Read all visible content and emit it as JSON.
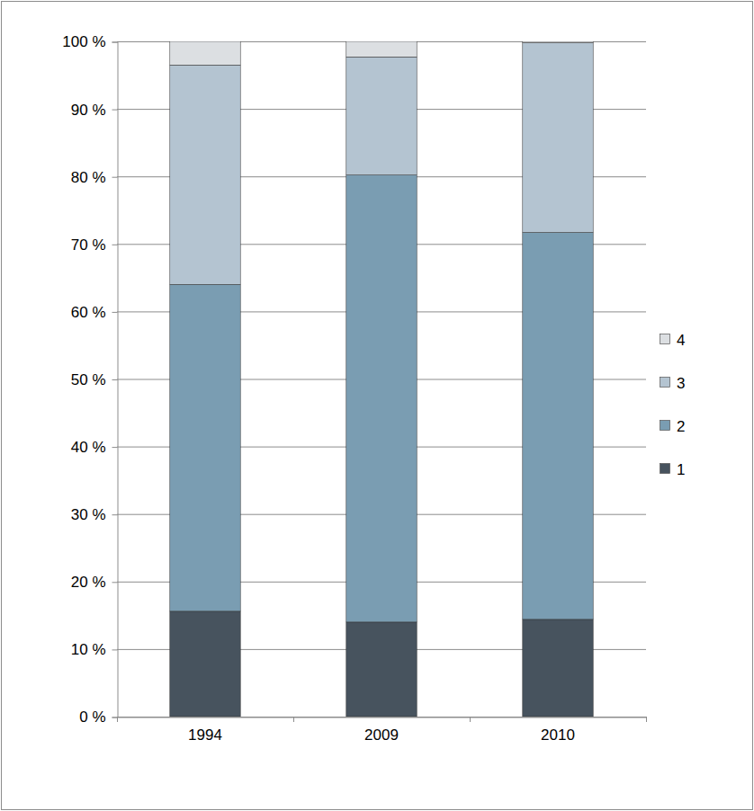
{
  "chart_data": {
    "type": "bar",
    "stacked": true,
    "grid": true,
    "legend": "right",
    "categories": [
      "1994",
      "2009",
      "2010"
    ],
    "series": [
      {
        "name": "1",
        "color": "#47535e",
        "values": [
          15.6,
          14.0,
          14.4
        ]
      },
      {
        "name": "2",
        "color": "#7a9db2",
        "values": [
          48.4,
          66.2,
          57.3
        ]
      },
      {
        "name": "3",
        "color": "#b4c4d1",
        "values": [
          32.5,
          17.5,
          28.1
        ]
      },
      {
        "name": "4",
        "color": "#dcdfe2",
        "values": [
          3.5,
          2.3,
          0.2
        ]
      }
    ],
    "ylim": [
      0,
      100
    ],
    "yticks": [
      {
        "value": 0,
        "label": "0 %"
      },
      {
        "value": 10,
        "label": "10 %"
      },
      {
        "value": 20,
        "label": "20 %"
      },
      {
        "value": 30,
        "label": "30 %"
      },
      {
        "value": 40,
        "label": "40 %"
      },
      {
        "value": 50,
        "label": "50 %"
      },
      {
        "value": 60,
        "label": "60 %"
      },
      {
        "value": 70,
        "label": "70 %"
      },
      {
        "value": 80,
        "label": "80 %"
      },
      {
        "value": 90,
        "label": "90 %"
      },
      {
        "value": 100,
        "label": "100 %"
      }
    ]
  }
}
